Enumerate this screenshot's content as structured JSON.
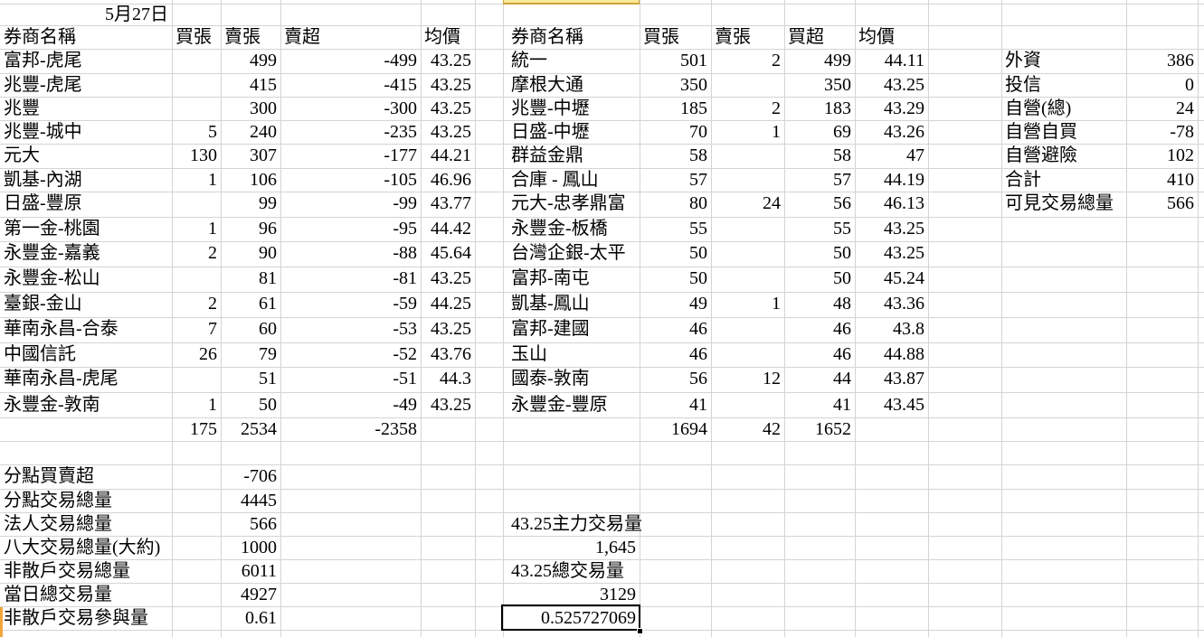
{
  "date_label": "5月27日",
  "left_table": {
    "headers": [
      "券商名稱",
      "買張",
      "賣張",
      "賣超",
      "均價"
    ],
    "rows": [
      {
        "name": "富邦-虎尾",
        "buy": "",
        "sell": "499",
        "net": "-499",
        "avg": "43.25"
      },
      {
        "name": "兆豐-虎尾",
        "buy": "",
        "sell": "415",
        "net": "-415",
        "avg": "43.25"
      },
      {
        "name": "兆豐",
        "buy": "",
        "sell": "300",
        "net": "-300",
        "avg": "43.25"
      },
      {
        "name": "兆豐-城中",
        "buy": "5",
        "sell": "240",
        "net": "-235",
        "avg": "43.25"
      },
      {
        "name": "元大",
        "buy": "130",
        "sell": "307",
        "net": "-177",
        "avg": "44.21"
      },
      {
        "name": "凱基-內湖",
        "buy": "1",
        "sell": "106",
        "net": "-105",
        "avg": "46.96"
      },
      {
        "name": "日盛-豐原",
        "buy": "",
        "sell": "99",
        "net": "-99",
        "avg": "43.77"
      },
      {
        "name": "第一金-桃園",
        "buy": "1",
        "sell": "96",
        "net": "-95",
        "avg": "44.42"
      },
      {
        "name": "永豐金-嘉義",
        "buy": "2",
        "sell": "90",
        "net": "-88",
        "avg": "45.64"
      },
      {
        "name": "永豐金-松山",
        "buy": "",
        "sell": "81",
        "net": "-81",
        "avg": "43.25"
      },
      {
        "name": "臺銀-金山",
        "buy": "2",
        "sell": "61",
        "net": "-59",
        "avg": "44.25"
      },
      {
        "name": "華南永昌-合泰",
        "buy": "7",
        "sell": "60",
        "net": "-53",
        "avg": "43.25"
      },
      {
        "name": "中國信託",
        "buy": "26",
        "sell": "79",
        "net": "-52",
        "avg": "43.76"
      },
      {
        "name": "華南永昌-虎尾",
        "buy": "",
        "sell": "51",
        "net": "-51",
        "avg": "44.3"
      },
      {
        "name": "永豐金-敦南",
        "buy": "1",
        "sell": "50",
        "net": "-49",
        "avg": "43.25"
      }
    ],
    "totals": {
      "buy": "175",
      "sell": "2534",
      "net": "-2358"
    }
  },
  "middle_table": {
    "headers": [
      "券商名稱",
      "買張",
      "賣張",
      "買超",
      "均價"
    ],
    "rows": [
      {
        "name": "統一",
        "buy": "501",
        "sell": "2",
        "net": "499",
        "avg": "44.11"
      },
      {
        "name": "摩根大通",
        "buy": "350",
        "sell": "",
        "net": "350",
        "avg": "43.25"
      },
      {
        "name": "兆豐-中壢",
        "buy": "185",
        "sell": "2",
        "net": "183",
        "avg": "43.29"
      },
      {
        "name": "日盛-中壢",
        "buy": "70",
        "sell": "1",
        "net": "69",
        "avg": "43.26"
      },
      {
        "name": "群益金鼎",
        "buy": "58",
        "sell": "",
        "net": "58",
        "avg": "47"
      },
      {
        "name": "合庫 - 鳳山",
        "buy": "57",
        "sell": "",
        "net": "57",
        "avg": "44.19"
      },
      {
        "name": "元大-忠孝鼎富",
        "buy": "80",
        "sell": "24",
        "net": "56",
        "avg": "46.13"
      },
      {
        "name": "永豐金-板橋",
        "buy": "55",
        "sell": "",
        "net": "55",
        "avg": "43.25"
      },
      {
        "name": "台灣企銀-太平",
        "buy": "50",
        "sell": "",
        "net": "50",
        "avg": "43.25"
      },
      {
        "name": "富邦-南屯",
        "buy": "50",
        "sell": "",
        "net": "50",
        "avg": "45.24"
      },
      {
        "name": "凱基-鳳山",
        "buy": "49",
        "sell": "1",
        "net": "48",
        "avg": "43.36"
      },
      {
        "name": "富邦-建國",
        "buy": "46",
        "sell": "",
        "net": "46",
        "avg": "43.8"
      },
      {
        "name": "玉山",
        "buy": "46",
        "sell": "",
        "net": "46",
        "avg": "44.88"
      },
      {
        "name": "國泰-敦南",
        "buy": "56",
        "sell": "12",
        "net": "44",
        "avg": "43.87"
      },
      {
        "name": "永豐金-豐原",
        "buy": "41",
        "sell": "",
        "net": "41",
        "avg": "43.45"
      }
    ],
    "totals": {
      "buy": "1694",
      "sell": "42",
      "net": "1652"
    }
  },
  "right_panel": {
    "rows": [
      {
        "label": "外資",
        "value": "386"
      },
      {
        "label": "投信",
        "value": "0"
      },
      {
        "label": "自營(總)",
        "value": "24"
      },
      {
        "label": "自營自買",
        "value": "-78"
      },
      {
        "label": "自營避險",
        "value": "102"
      },
      {
        "label": "合計",
        "value": "410"
      },
      {
        "label": "可見交易總量",
        "value": "566"
      }
    ]
  },
  "bottom_left": {
    "rows": [
      {
        "label": "分點買賣超",
        "value": "-706"
      },
      {
        "label": "分點交易總量",
        "value": "4445"
      },
      {
        "label": "法人交易總量",
        "value": "566"
      },
      {
        "label": "八大交易總量(大約)",
        "value": "1000"
      },
      {
        "label": "非散戶交易總量",
        "value": "6011"
      },
      {
        "label": "當日總交易量",
        "value": "4927"
      },
      {
        "label": "非散戶交易參與量",
        "value": "0.61"
      }
    ]
  },
  "bottom_middle": {
    "cells": [
      {
        "text": "43.25主力交易量",
        "align": "left"
      },
      {
        "text": "1,645",
        "align": "right"
      },
      {
        "text": "43.25總交易量",
        "align": "left"
      },
      {
        "text": "3129",
        "align": "right"
      },
      {
        "text": "0.525727069",
        "align": "right",
        "selected": true
      }
    ]
  },
  "colors": {
    "gridline": "#d4d4d4",
    "highlight_fill": "#f9e897",
    "highlight_border": "#cfa43c",
    "selection_border": "#000000"
  }
}
